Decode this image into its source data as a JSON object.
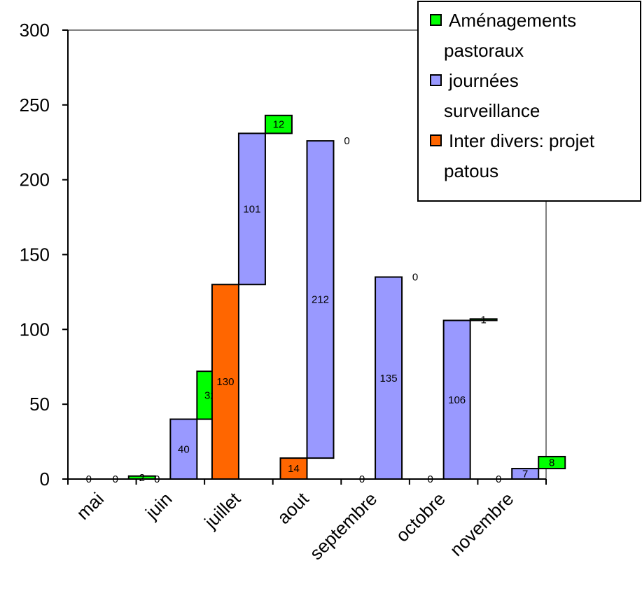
{
  "chart_data": {
    "type": "bar",
    "stacked": true,
    "categories": [
      "mai",
      "juin",
      "juillet",
      "aout",
      "septembre",
      "octobre",
      "novembre"
    ],
    "series": [
      {
        "name": "Inter divers: projet patous",
        "color": "#FF6600",
        "values": [
          0,
          0,
          130,
          14,
          0,
          0,
          0
        ]
      },
      {
        "name": "journées surveillance",
        "color": "#9999FF",
        "values": [
          0,
          40,
          101,
          212,
          135,
          106,
          7
        ]
      },
      {
        "name": "Aménagements pastoraux",
        "color": "#00FF00",
        "values": [
          2,
          32,
          12,
          0,
          0,
          1,
          8
        ]
      }
    ],
    "ylim": [
      0,
      300
    ],
    "yticks": [
      0,
      50,
      100,
      150,
      200,
      250,
      300
    ],
    "legend": {
      "placement": "top-right",
      "entries": [
        {
          "series": 2,
          "lines": [
            "Aménagements",
            "pastoraux"
          ]
        },
        {
          "series": 1,
          "lines": [
            "journées",
            "surveillance"
          ]
        },
        {
          "series": 0,
          "lines": [
            "Inter divers: projet",
            "patous"
          ]
        }
      ]
    },
    "gridlines": false
  }
}
